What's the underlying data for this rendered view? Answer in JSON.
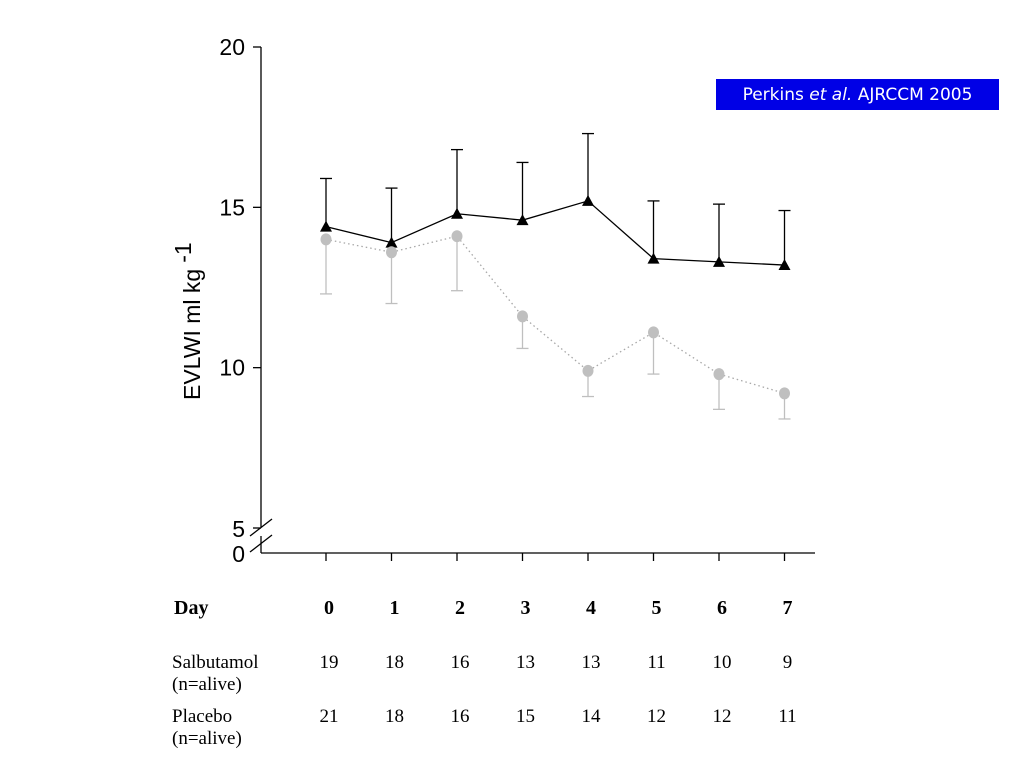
{
  "citation": {
    "author": "Perkins",
    "etal": "et al.",
    "source": "AJRCCM 2005"
  },
  "chart_data": {
    "type": "line",
    "ylabel": "EVLWI  ml kg",
    "ylabel_exponent": "-1",
    "ylim": [
      0,
      20
    ],
    "y_axis_break": true,
    "y_ticks": [
      "20",
      "15",
      "10",
      "5",
      "0"
    ],
    "x": [
      0,
      1,
      2,
      3,
      4,
      5,
      6,
      7
    ],
    "grid": false,
    "series": [
      {
        "name": "Placebo",
        "marker": "triangle",
        "line": "solid",
        "color": "#000000",
        "values": [
          14.4,
          13.9,
          14.8,
          14.6,
          15.2,
          13.4,
          13.3,
          13.2
        ],
        "error_upper": [
          15.9,
          15.6,
          16.8,
          16.4,
          17.3,
          15.2,
          15.1,
          14.9
        ]
      },
      {
        "name": "Salbutamol",
        "marker": "circle",
        "line": "dotted",
        "color": "#bfbfbf",
        "values": [
          14.0,
          13.6,
          14.1,
          11.6,
          9.9,
          11.1,
          9.8,
          9.2
        ],
        "error_lower": [
          12.3,
          12.0,
          12.4,
          10.6,
          9.1,
          9.8,
          8.7,
          8.4
        ]
      }
    ],
    "table": {
      "header_label": "Day",
      "days": [
        "0",
        "1",
        "2",
        "3",
        "4",
        "5",
        "6",
        "7"
      ],
      "rows": [
        {
          "label": "Salbutamol",
          "sublabel": "(n=alive)",
          "values": [
            "19",
            "18",
            "16",
            "13",
            "13",
            "11",
            "10",
            "9"
          ]
        },
        {
          "label": "Placebo",
          "sublabel": "(n=alive)",
          "values": [
            "21",
            "18",
            "16",
            "15",
            "14",
            "12",
            "12",
            "11"
          ]
        }
      ]
    }
  }
}
